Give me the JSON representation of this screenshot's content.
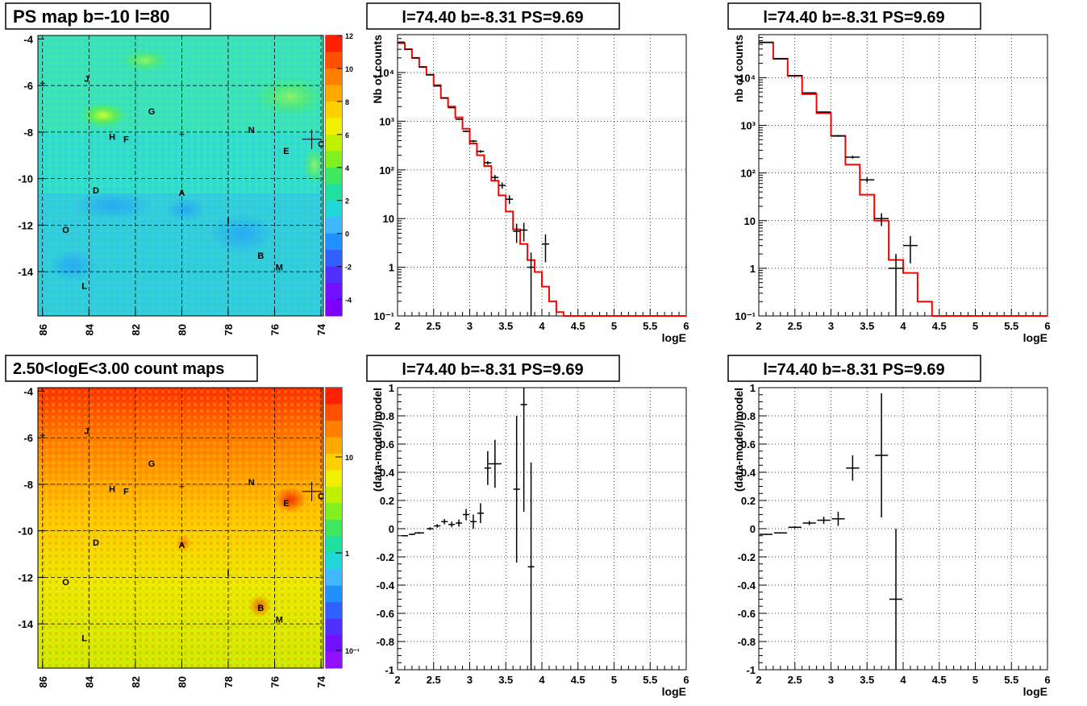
{
  "maps": [
    {
      "title": "PS map b=-10 l=80",
      "colorscale": "linear",
      "x_ticks": [
        "86",
        "84",
        "82",
        "80",
        "78",
        "76",
        "74"
      ],
      "y_ticks": [
        "-4",
        "-6",
        "-8",
        "-10",
        "-12",
        "-14"
      ],
      "z_ticks": [
        "12",
        "10",
        "8",
        "6",
        "4",
        "2",
        "0",
        "-2",
        "-4"
      ],
      "z_range": [
        -5,
        12
      ],
      "sources": [
        {
          "label": "J",
          "l": 84.1,
          "b": -5.7
        },
        {
          "label": "G",
          "l": 81.3,
          "b": -7.1
        },
        {
          "label": "N",
          "l": 77.0,
          "b": -7.9
        },
        {
          "label": "H",
          "l": 83.0,
          "b": -8.2
        },
        {
          "label": "F",
          "l": 82.4,
          "b": -8.3
        },
        {
          "label": "C",
          "l": 74.0,
          "b": -8.5
        },
        {
          "label": "E",
          "l": 75.5,
          "b": -8.8
        },
        {
          "label": "D",
          "l": 83.7,
          "b": -10.5
        },
        {
          "label": "A",
          "l": 80.0,
          "b": -10.6
        },
        {
          "label": "I",
          "l": 78.0,
          "b": -11.8
        },
        {
          "label": "O",
          "l": 85.0,
          "b": -12.2
        },
        {
          "label": "B",
          "l": 76.6,
          "b": -13.3
        },
        {
          "label": "M",
          "l": 75.8,
          "b": -13.8
        },
        {
          "label": "L",
          "l": 84.2,
          "b": -14.6
        }
      ]
    },
    {
      "title": "2.50<logE<3.00 count maps",
      "colorscale": "log",
      "x_ticks": [
        "86",
        "84",
        "82",
        "80",
        "78",
        "76",
        "74"
      ],
      "y_ticks": [
        "-4",
        "-6",
        "-8",
        "-10",
        "-12",
        "-14"
      ],
      "z_ticks": [
        "10",
        "1",
        "10⁻¹"
      ],
      "sources": [
        {
          "label": "J",
          "l": 84.1,
          "b": -5.7
        },
        {
          "label": "G",
          "l": 81.3,
          "b": -7.1
        },
        {
          "label": "N",
          "l": 77.0,
          "b": -7.9
        },
        {
          "label": "H",
          "l": 83.0,
          "b": -8.2
        },
        {
          "label": "F",
          "l": 82.4,
          "b": -8.3
        },
        {
          "label": "C",
          "l": 74.0,
          "b": -8.5
        },
        {
          "label": "E",
          "l": 75.5,
          "b": -8.8
        },
        {
          "label": "D",
          "l": 83.7,
          "b": -10.5
        },
        {
          "label": "A",
          "l": 80.0,
          "b": -10.6
        },
        {
          "label": "I",
          "l": 78.0,
          "b": -11.8
        },
        {
          "label": "O",
          "l": 85.0,
          "b": -12.2
        },
        {
          "label": "B",
          "l": 76.6,
          "b": -13.3
        },
        {
          "label": "M",
          "l": 75.8,
          "b": -13.8
        },
        {
          "label": "L",
          "l": 84.2,
          "b": -14.6
        }
      ]
    }
  ],
  "chart_data": [
    {
      "type": "line",
      "title": "l=74.40 b=-8.31 PS=9.69",
      "xlabel": "logE",
      "ylabel": "Nb of counts",
      "yscale": "log",
      "xlim": [
        2,
        6
      ],
      "ylim": [
        0.1,
        60000
      ],
      "x_ticks": [
        "2",
        "2.5",
        "3",
        "3.5",
        "4",
        "4.5",
        "5",
        "5.5",
        "6"
      ],
      "y_ticks": [
        {
          "v": 0.1,
          "label": "10⁻¹"
        },
        {
          "v": 1,
          "label": "1"
        },
        {
          "v": 10,
          "label": "10"
        },
        {
          "v": 100,
          "label": "10²"
        },
        {
          "v": 1000,
          "label": "10³"
        },
        {
          "v": 10000,
          "label": "10⁴"
        }
      ],
      "grid": true,
      "model": {
        "edges": [
          2.0,
          2.1,
          2.2,
          2.3,
          2.4,
          2.5,
          2.6,
          2.7,
          2.8,
          2.9,
          3.0,
          3.1,
          3.2,
          3.3,
          3.4,
          3.5,
          3.6,
          3.7,
          3.8,
          3.9,
          4.0,
          4.1,
          4.2,
          4.3,
          6.0
        ],
        "values": [
          40000,
          30000,
          20000,
          13000,
          9000,
          5500,
          3000,
          2000,
          1200,
          700,
          350,
          200,
          120,
          60,
          30,
          14,
          6,
          3,
          1.4,
          0.8,
          0.4,
          0.2,
          0.12,
          0.1
        ]
      },
      "data": [
        {
          "x": 2.05,
          "y": 42000
        },
        {
          "x": 2.15,
          "y": 30000
        },
        {
          "x": 2.25,
          "y": 20000
        },
        {
          "x": 2.35,
          "y": 13000
        },
        {
          "x": 2.45,
          "y": 9000
        },
        {
          "x": 2.55,
          "y": 5300
        },
        {
          "x": 2.65,
          "y": 3000
        },
        {
          "x": 2.75,
          "y": 1900
        },
        {
          "x": 2.85,
          "y": 1100
        },
        {
          "x": 2.95,
          "y": 620
        },
        {
          "x": 3.05,
          "y": 390
        },
        {
          "x": 3.15,
          "y": 240
        },
        {
          "x": 3.25,
          "y": 140
        },
        {
          "x": 3.35,
          "y": 70
        },
        {
          "x": 3.45,
          "y": 48
        },
        {
          "x": 3.55,
          "y": 25
        },
        {
          "x": 3.65,
          "y": 5.5
        },
        {
          "x": 3.75,
          "y": 5.8
        },
        {
          "x": 3.85,
          "y": 1.0
        },
        {
          "x": 4.05,
          "y": 3.0
        }
      ]
    },
    {
      "type": "line",
      "title": "l=74.40 b=-8.31 PS=9.69",
      "xlabel": "logE",
      "ylabel": "nb of counts",
      "yscale": "log",
      "xlim": [
        2,
        6
      ],
      "ylim": [
        0.1,
        80000
      ],
      "x_ticks": [
        "2",
        "2.5",
        "3",
        "3.5",
        "4",
        "4.5",
        "5",
        "5.5",
        "6"
      ],
      "y_ticks": [
        {
          "v": 0.1,
          "label": "10⁻¹"
        },
        {
          "v": 1,
          "label": "1"
        },
        {
          "v": 10,
          "label": "10"
        },
        {
          "v": 100,
          "label": "10²"
        },
        {
          "v": 1000,
          "label": "10³"
        },
        {
          "v": 10000,
          "label": "10⁴"
        }
      ],
      "grid": true,
      "model": {
        "edges": [
          2.0,
          2.2,
          2.4,
          2.6,
          2.8,
          3.0,
          3.2,
          3.4,
          3.6,
          3.8,
          4.0,
          4.2,
          4.4,
          6.0
        ],
        "values": [
          55000,
          25000,
          11000,
          4500,
          1800,
          600,
          150,
          35,
          10,
          1.5,
          0.8,
          0.2,
          0.1
        ]
      },
      "data": [
        {
          "x": 2.1,
          "y": 55000
        },
        {
          "x": 2.3,
          "y": 25000
        },
        {
          "x": 2.5,
          "y": 11000
        },
        {
          "x": 2.7,
          "y": 4800
        },
        {
          "x": 2.9,
          "y": 1900
        },
        {
          "x": 3.1,
          "y": 600
        },
        {
          "x": 3.3,
          "y": 215
        },
        {
          "x": 3.5,
          "y": 72
        },
        {
          "x": 3.7,
          "y": 11
        },
        {
          "x": 3.9,
          "y": 1.0
        },
        {
          "x": 4.1,
          "y": 3.0
        }
      ]
    },
    {
      "type": "scatter",
      "title": "l=74.40 b=-8.31 PS=9.69",
      "xlabel": "logE",
      "ylabel": "(data-model)/model",
      "xlim": [
        2,
        6
      ],
      "ylim": [
        -1,
        1
      ],
      "x_ticks": [
        "2",
        "2.5",
        "3",
        "3.5",
        "4",
        "4.5",
        "5",
        "5.5",
        "6"
      ],
      "y_ticks": [
        "1",
        "0.8",
        "0.6",
        "0.4",
        "0.2",
        "0",
        "-0.2",
        "-0.4",
        "-0.6",
        "-0.8",
        "-1"
      ],
      "grid": true,
      "points": [
        {
          "x": 2.1,
          "y": -0.05,
          "err": 0.005
        },
        {
          "x": 2.2,
          "y": -0.04,
          "err": 0.006
        },
        {
          "x": 2.3,
          "y": -0.03,
          "err": 0.006
        },
        {
          "x": 2.45,
          "y": 0.0,
          "err": 0.01
        },
        {
          "x": 2.55,
          "y": 0.02,
          "err": 0.012
        },
        {
          "x": 2.65,
          "y": 0.05,
          "err": 0.018
        },
        {
          "x": 2.75,
          "y": 0.03,
          "err": 0.02
        },
        {
          "x": 2.85,
          "y": 0.04,
          "err": 0.025
        },
        {
          "x": 2.95,
          "y": 0.1,
          "err": 0.04
        },
        {
          "x": 3.05,
          "y": 0.05,
          "err": 0.05
        },
        {
          "x": 3.15,
          "y": 0.11,
          "err": 0.07
        },
        {
          "x": 3.25,
          "y": 0.43,
          "err": 0.12
        },
        {
          "x": 3.35,
          "y": 0.46,
          "err": 0.17
        },
        {
          "x": 3.65,
          "y": 0.28,
          "err": 0.52
        },
        {
          "x": 3.75,
          "y": 0.88,
          "err": 0.76
        },
        {
          "x": 3.85,
          "y": -0.27,
          "err": 0.74
        }
      ]
    },
    {
      "type": "scatter",
      "title": "l=74.40 b=-8.31 PS=9.69",
      "xlabel": "logE",
      "ylabel": "(data-model)/model",
      "xlim": [
        2,
        6
      ],
      "ylim": [
        -1,
        1
      ],
      "x_ticks": [
        "2",
        "2.5",
        "3",
        "3.5",
        "4",
        "4.5",
        "5",
        "5.5",
        "6"
      ],
      "y_ticks": [
        "1",
        "0.8",
        "0.6",
        "0.4",
        "0.2",
        "0",
        "-0.2",
        "-0.4",
        "-0.6",
        "-0.8",
        "-1"
      ],
      "grid": true,
      "points": [
        {
          "x": 2.1,
          "y": -0.04,
          "err": 0.004
        },
        {
          "x": 2.3,
          "y": -0.03,
          "err": 0.005
        },
        {
          "x": 2.5,
          "y": 0.01,
          "err": 0.008
        },
        {
          "x": 2.7,
          "y": 0.04,
          "err": 0.015
        },
        {
          "x": 2.9,
          "y": 0.06,
          "err": 0.025
        },
        {
          "x": 3.1,
          "y": 0.07,
          "err": 0.05
        },
        {
          "x": 3.3,
          "y": 0.43,
          "err": 0.09
        },
        {
          "x": 3.7,
          "y": 0.52,
          "err": 0.44
        },
        {
          "x": 3.9,
          "y": -0.5,
          "err": 0.5
        }
      ]
    }
  ]
}
